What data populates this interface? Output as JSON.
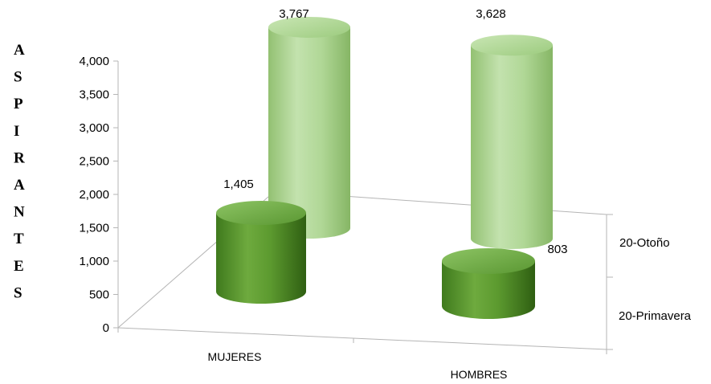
{
  "chart_data": {
    "type": "bar",
    "style": "3d-cylinder",
    "categories": [
      "MUJERES",
      "HOMBRES"
    ],
    "series": [
      {
        "name": "20-Primavera",
        "values": [
          1405,
          803
        ],
        "color": "#6ea840"
      },
      {
        "name": "20-Otoño",
        "values": [
          3767,
          3628
        ],
        "color": "#a5d08a"
      }
    ],
    "data_labels": {
      "20-Primavera": [
        "1,405",
        "803"
      ],
      "20-Otoño": [
        "3,767",
        "3,628"
      ]
    },
    "ylabel_letters": [
      "A",
      "S",
      "P",
      "I",
      "R",
      "A",
      "N",
      "T",
      "E",
      "S"
    ],
    "ylim": [
      0,
      4000
    ],
    "yticks": [
      "0",
      "500",
      "1,000",
      "1,500",
      "2,000",
      "2,500",
      "3,000",
      "3,500",
      "4,000"
    ],
    "title": "",
    "xlabel": "",
    "grid": false,
    "legend": "none"
  }
}
